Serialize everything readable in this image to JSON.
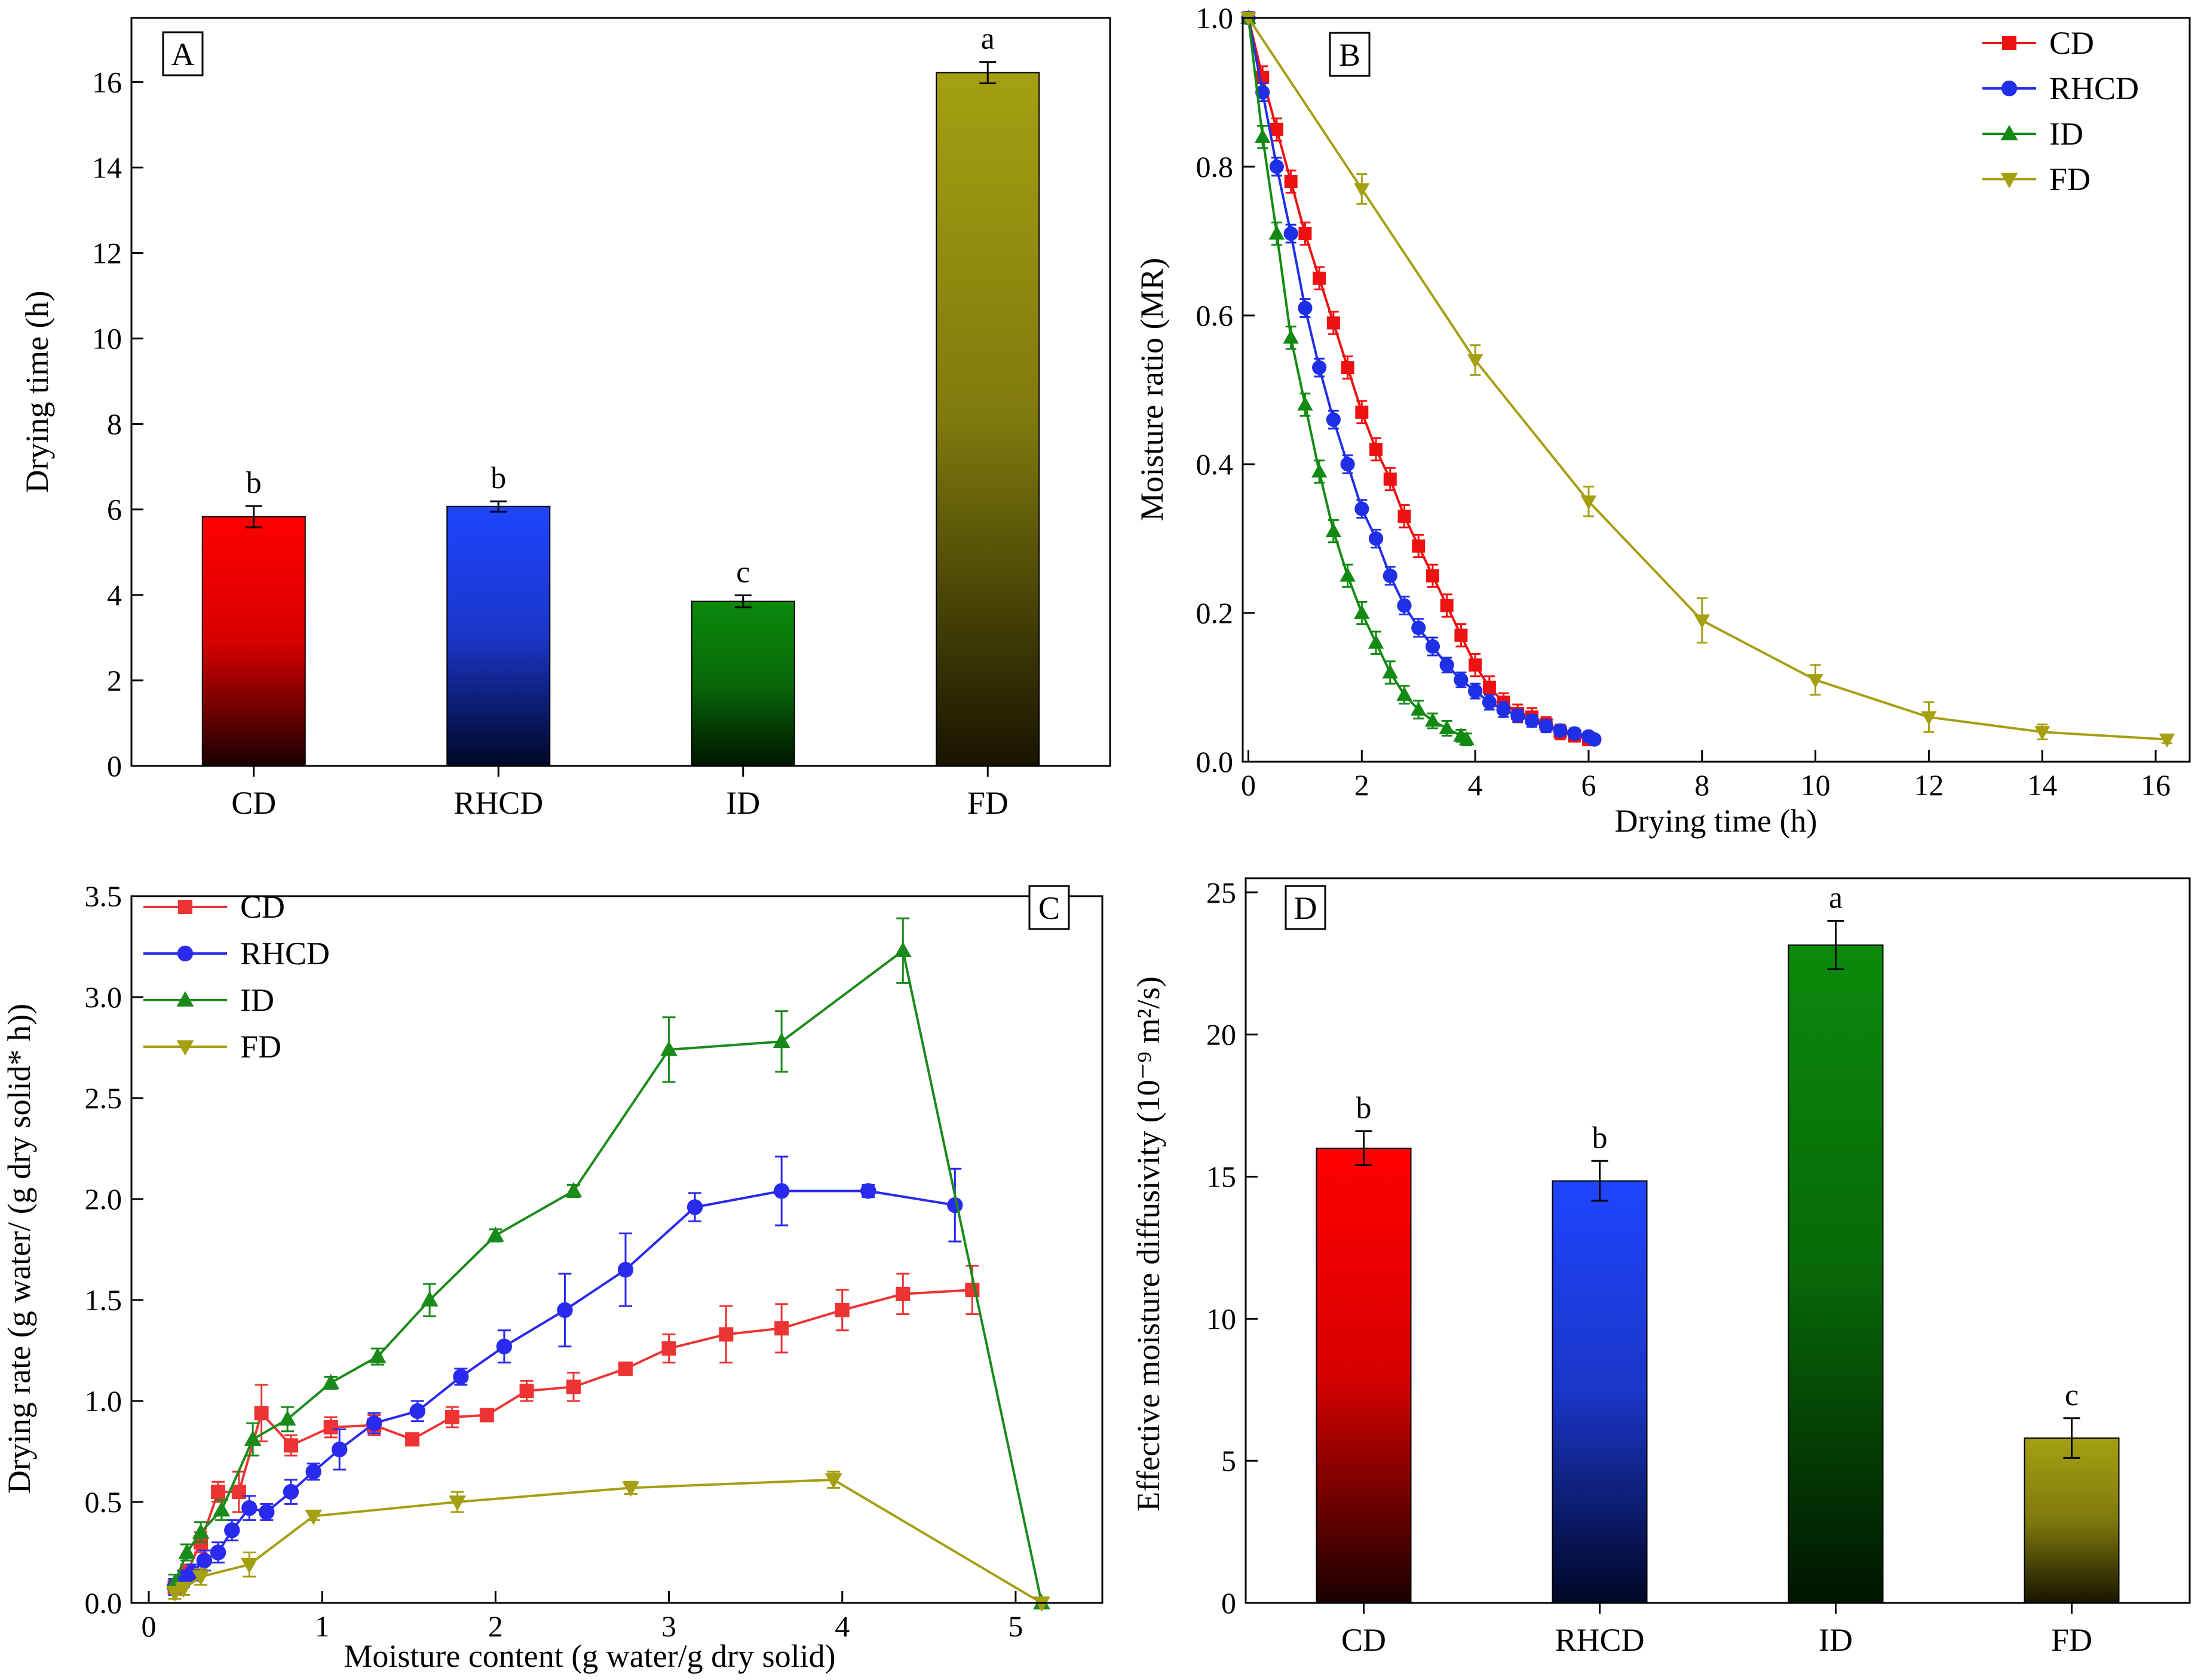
{
  "chart_data": [
    {
      "panel": "A",
      "type": "bar",
      "ylabel": "Drying time (h)",
      "xlabel": "",
      "ylim": [
        0,
        17.5
      ],
      "yticks": [
        0,
        2,
        4,
        6,
        8,
        10,
        12,
        14,
        16
      ],
      "categories": [
        "CD",
        "RHCD",
        "ID",
        "FD"
      ],
      "values": [
        5.83,
        6.07,
        3.85,
        16.22
      ],
      "errors": [
        0.25,
        0.12,
        0.14,
        0.25
      ],
      "letters": [
        "b",
        "b",
        "c",
        "a"
      ],
      "colors": [
        "#ff0000",
        "#1f45ff",
        "#0b8a0b",
        "#a59f12"
      ]
    },
    {
      "panel": "B",
      "type": "line",
      "xlabel": "Drying time (h)",
      "ylabel": "Moisture ratio (MR)",
      "xlim": [
        -0.1,
        16.6
      ],
      "ylim": [
        0,
        1.0
      ],
      "xticks": [
        0,
        2,
        4,
        6,
        8,
        10,
        12,
        14,
        16
      ],
      "yticks": [
        0.0,
        0.2,
        0.4,
        0.6,
        0.8,
        1.0
      ],
      "legend": "top-right",
      "series": [
        {
          "name": "CD",
          "color": "#ee1111",
          "marker": "square",
          "x": [
            0,
            0.25,
            0.5,
            0.75,
            1.0,
            1.25,
            1.5,
            1.75,
            2.0,
            2.25,
            2.5,
            2.75,
            3.0,
            3.25,
            3.5,
            3.75,
            4.0,
            4.25,
            4.5,
            4.75,
            5.0,
            5.25,
            5.5,
            5.75,
            6.0
          ],
          "y": [
            1.0,
            0.92,
            0.85,
            0.78,
            0.71,
            0.65,
            0.59,
            0.53,
            0.47,
            0.42,
            0.38,
            0.33,
            0.29,
            0.25,
            0.21,
            0.17,
            0.13,
            0.1,
            0.08,
            0.065,
            0.06,
            0.05,
            0.04,
            0.035,
            0.03
          ],
          "err": [
            0,
            0.015,
            0.015,
            0.015,
            0.015,
            0.015,
            0.015,
            0.015,
            0.015,
            0.015,
            0.015,
            0.015,
            0.015,
            0.015,
            0.015,
            0.015,
            0.015,
            0.015,
            0.012,
            0.012,
            0.012,
            0.01,
            0.01,
            0.008,
            0.008
          ]
        },
        {
          "name": "RHCD",
          "color": "#1f2fe6",
          "marker": "circle",
          "x": [
            0,
            0.25,
            0.5,
            0.75,
            1.0,
            1.25,
            1.5,
            1.75,
            2.0,
            2.25,
            2.5,
            2.75,
            3.0,
            3.25,
            3.5,
            3.75,
            4.0,
            4.25,
            4.5,
            4.75,
            5.0,
            5.25,
            5.5,
            5.75,
            6.0,
            6.1
          ],
          "y": [
            1.0,
            0.9,
            0.8,
            0.71,
            0.61,
            0.53,
            0.46,
            0.4,
            0.34,
            0.3,
            0.25,
            0.21,
            0.18,
            0.155,
            0.13,
            0.11,
            0.095,
            0.08,
            0.07,
            0.062,
            0.055,
            0.048,
            0.042,
            0.038,
            0.034,
            0.03
          ],
          "err": [
            0,
            0.012,
            0.012,
            0.012,
            0.012,
            0.012,
            0.012,
            0.012,
            0.012,
            0.012,
            0.012,
            0.012,
            0.012,
            0.012,
            0.01,
            0.01,
            0.01,
            0.01,
            0.01,
            0.008,
            0.008,
            0.008,
            0.007,
            0.007,
            0.006,
            0.006
          ]
        },
        {
          "name": "ID",
          "color": "#128a12",
          "marker": "triangle-up",
          "x": [
            0,
            0.25,
            0.5,
            0.75,
            1.0,
            1.25,
            1.5,
            1.75,
            2.0,
            2.25,
            2.5,
            2.75,
            3.0,
            3.25,
            3.5,
            3.75,
            3.85
          ],
          "y": [
            1.0,
            0.84,
            0.71,
            0.57,
            0.48,
            0.39,
            0.31,
            0.25,
            0.2,
            0.16,
            0.12,
            0.09,
            0.07,
            0.055,
            0.045,
            0.035,
            0.03
          ],
          "err": [
            0,
            0.015,
            0.015,
            0.015,
            0.015,
            0.015,
            0.015,
            0.015,
            0.015,
            0.015,
            0.015,
            0.012,
            0.012,
            0.01,
            0.01,
            0.008,
            0.008
          ]
        },
        {
          "name": "FD",
          "color": "#a59f12",
          "marker": "triangle-down",
          "x": [
            0,
            2,
            4,
            6,
            8,
            10,
            12,
            14,
            16.2
          ],
          "y": [
            1.0,
            0.77,
            0.54,
            0.35,
            0.19,
            0.11,
            0.06,
            0.04,
            0.03
          ],
          "err": [
            0,
            0.02,
            0.02,
            0.02,
            0.03,
            0.02,
            0.02,
            0.01,
            0.005
          ]
        }
      ]
    },
    {
      "panel": "C",
      "type": "line",
      "xlabel": "Moisture content (g water/g dry solid)",
      "ylabel": "Drying rate (g water/ (g dry solid* h))",
      "xlim": [
        -0.1,
        5.5
      ],
      "ylim": [
        0,
        3.5
      ],
      "xticks": [
        0,
        1,
        2,
        3,
        4,
        5
      ],
      "yticks": [
        0.0,
        0.5,
        1.0,
        1.5,
        2.0,
        2.5,
        3.0,
        3.5
      ],
      "legend": "top-left",
      "series": [
        {
          "name": "CD",
          "color": "#ee3333",
          "marker": "square",
          "x": [
            4.75,
            4.35,
            4.0,
            3.65,
            3.33,
            3.0,
            2.75,
            2.45,
            2.18,
            1.95,
            1.75,
            1.52,
            1.3,
            1.05,
            0.82,
            0.65,
            0.52,
            0.4,
            0.3,
            0.22,
            0.15
          ],
          "y": [
            1.55,
            1.53,
            1.45,
            1.36,
            1.33,
            1.26,
            1.16,
            1.07,
            1.05,
            0.93,
            0.92,
            0.81,
            0.88,
            0.87,
            0.78,
            0.94,
            0.55,
            0.55,
            0.3,
            0.15,
            0.08
          ],
          "err": [
            0.12,
            0.1,
            0.1,
            0.12,
            0.14,
            0.07,
            0.03,
            0.07,
            0.05,
            0.03,
            0.05,
            0.03,
            0.05,
            0.05,
            0.05,
            0.14,
            0.1,
            0.05,
            0.05,
            0.04,
            0.04
          ]
        },
        {
          "name": "RHCD",
          "color": "#2a2aee",
          "marker": "circle",
          "x": [
            4.65,
            4.15,
            3.65,
            3.15,
            2.75,
            2.4,
            2.05,
            1.8,
            1.55,
            1.3,
            1.1,
            0.95,
            0.82,
            0.68,
            0.58,
            0.48,
            0.4,
            0.32,
            0.25,
            0.2,
            0.15
          ],
          "y": [
            1.97,
            2.04,
            2.04,
            1.96,
            1.65,
            1.45,
            1.27,
            1.12,
            0.95,
            0.89,
            0.76,
            0.65,
            0.55,
            0.45,
            0.47,
            0.36,
            0.25,
            0.21,
            0.15,
            0.12,
            0.08
          ],
          "err": [
            0.18,
            0.03,
            0.17,
            0.07,
            0.18,
            0.18,
            0.08,
            0.04,
            0.05,
            0.05,
            0.1,
            0.04,
            0.06,
            0.04,
            0.06,
            0.05,
            0.05,
            0.05,
            0.04,
            0.04,
            0.04
          ]
        },
        {
          "name": "ID",
          "color": "#1a8a1a",
          "marker": "triangle-up",
          "x": [
            5.15,
            4.35,
            3.65,
            3.0,
            2.45,
            2.0,
            1.62,
            1.32,
            1.05,
            0.8,
            0.6,
            0.42,
            0.3,
            0.22,
            0.15
          ],
          "y": [
            0.0,
            3.23,
            2.78,
            2.74,
            2.04,
            1.82,
            1.5,
            1.22,
            1.09,
            0.91,
            0.81,
            0.46,
            0.35,
            0.25,
            0.1
          ],
          "err": [
            0,
            0.16,
            0.15,
            0.16,
            0.03,
            0.03,
            0.08,
            0.04,
            0.03,
            0.06,
            0.08,
            0.05,
            0.05,
            0.04,
            0.04
          ]
        },
        {
          "name": "FD",
          "color": "#a59f12",
          "marker": "triangle-down",
          "x": [
            5.15,
            3.95,
            2.78,
            1.78,
            0.95,
            0.58,
            0.3,
            0.2,
            0.15
          ],
          "y": [
            0.0,
            0.61,
            0.57,
            0.5,
            0.43,
            0.19,
            0.13,
            0.07,
            0.05
          ],
          "err": [
            0,
            0.04,
            0.03,
            0.05,
            0.02,
            0.06,
            0.04,
            0.03,
            0.03
          ]
        }
      ]
    },
    {
      "panel": "D",
      "type": "bar",
      "ylabel": "Effective moisture diffusivity (10⁻⁹ m²/s)",
      "xlabel": "",
      "ylim": [
        0,
        25.5
      ],
      "yticks": [
        0,
        5,
        10,
        15,
        20,
        25
      ],
      "categories": [
        "CD",
        "RHCD",
        "ID",
        "FD"
      ],
      "values": [
        16.0,
        14.85,
        23.15,
        5.8
      ],
      "errors": [
        0.6,
        0.7,
        0.85,
        0.7
      ],
      "letters": [
        "b",
        "b",
        "a",
        "c"
      ],
      "colors": [
        "#ff0000",
        "#1f45ff",
        "#0b8a0b",
        "#a59f12"
      ]
    }
  ]
}
